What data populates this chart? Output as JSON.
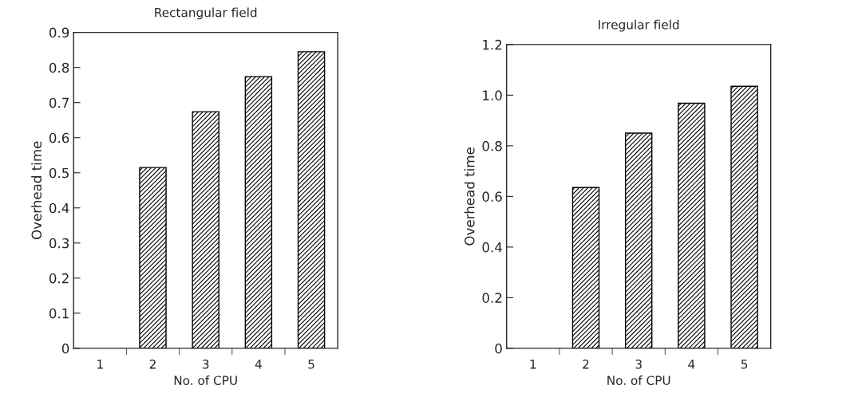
{
  "chart_data": [
    {
      "type": "bar",
      "title": "Rectangular field",
      "xlabel": "No. of CPU",
      "ylabel": "Overhead time",
      "categories": [
        "1",
        "2",
        "3",
        "4",
        "5"
      ],
      "values": [
        null,
        0.515,
        0.674,
        0.774,
        0.845
      ],
      "color": "#000000",
      "ylim": [
        0,
        0.9
      ],
      "yticks": [
        0,
        0.1,
        0.2,
        0.3,
        0.4,
        0.5,
        0.6,
        0.7,
        0.8,
        0.9
      ],
      "grid": false,
      "legend": false
    },
    {
      "type": "bar",
      "title": "Irregular field",
      "xlabel": "No. of CPU",
      "ylabel": "Overhead time",
      "categories": [
        "1",
        "2",
        "3",
        "4",
        "5"
      ],
      "values": [
        null,
        0.635,
        0.85,
        0.968,
        1.035
      ],
      "color": "#000000",
      "ylim": [
        0,
        1.2
      ],
      "yticks": [
        0,
        0.2,
        0.4,
        0.6,
        0.8,
        {
          "value": 1,
          "label": "1.0"
        },
        1.2
      ],
      "grid": false,
      "legend": false
    }
  ]
}
